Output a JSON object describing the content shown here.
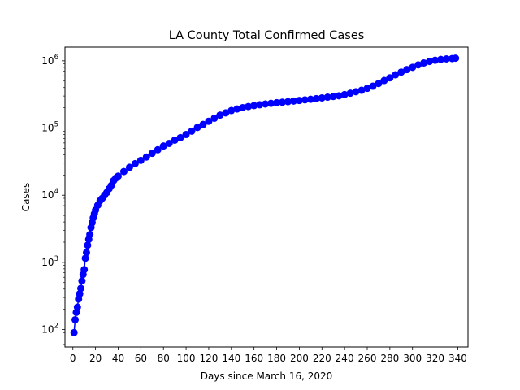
{
  "chart_data": {
    "type": "line",
    "title": "LA County Total Confirmed Cases",
    "xlabel": "Days since March 16, 2020",
    "ylabel": "Cases",
    "x_scale": "linear",
    "y_scale": "log",
    "xlim": [
      -7,
      349
    ],
    "ylim": [
      55,
      1600000
    ],
    "x_ticks": [
      0,
      20,
      40,
      60,
      80,
      100,
      120,
      140,
      160,
      180,
      200,
      220,
      240,
      260,
      280,
      300,
      320,
      340
    ],
    "y_ticks": [
      {
        "value": 100,
        "base": "10",
        "exp": "2"
      },
      {
        "value": 1000,
        "base": "10",
        "exp": "3"
      },
      {
        "value": 10000,
        "base": "10",
        "exp": "4"
      },
      {
        "value": 100000,
        "base": "10",
        "exp": "5"
      },
      {
        "value": 1000000,
        "base": "10",
        "exp": "6"
      }
    ],
    "grid": false,
    "legend": "none",
    "series": [
      {
        "color": "#0000ff",
        "marker": "circle",
        "points": [
          [
            1,
            90
          ],
          [
            2,
            140
          ],
          [
            3,
            180
          ],
          [
            4,
            215
          ],
          [
            5,
            285
          ],
          [
            6,
            340
          ],
          [
            7,
            410
          ],
          [
            8,
            530
          ],
          [
            9,
            660
          ],
          [
            10,
            780
          ],
          [
            11,
            1150
          ],
          [
            12,
            1400
          ],
          [
            13,
            1800
          ],
          [
            14,
            2200
          ],
          [
            15,
            2600
          ],
          [
            16,
            3300
          ],
          [
            17,
            3900
          ],
          [
            18,
            4600
          ],
          [
            19,
            5300
          ],
          [
            20,
            6000
          ],
          [
            22,
            7100
          ],
          [
            24,
            8300
          ],
          [
            26,
            9000
          ],
          [
            28,
            10000
          ],
          [
            30,
            11000
          ],
          [
            32,
            12500
          ],
          [
            34,
            14000
          ],
          [
            36,
            16500
          ],
          [
            38,
            18000
          ],
          [
            40,
            19200
          ],
          [
            45,
            22500
          ],
          [
            50,
            26000
          ],
          [
            55,
            29500
          ],
          [
            60,
            33000
          ],
          [
            65,
            37000
          ],
          [
            70,
            42000
          ],
          [
            75,
            47500
          ],
          [
            80,
            54000
          ],
          [
            85,
            59000
          ],
          [
            90,
            66000
          ],
          [
            95,
            72000
          ],
          [
            100,
            80000
          ],
          [
            105,
            90000
          ],
          [
            110,
            102000
          ],
          [
            115,
            113000
          ],
          [
            120,
            126000
          ],
          [
            125,
            140000
          ],
          [
            130,
            156000
          ],
          [
            135,
            168000
          ],
          [
            140,
            182000
          ],
          [
            145,
            192000
          ],
          [
            150,
            201000
          ],
          [
            155,
            209000
          ],
          [
            160,
            216000
          ],
          [
            165,
            222000
          ],
          [
            170,
            228000
          ],
          [
            175,
            233000
          ],
          [
            180,
            238000
          ],
          [
            185,
            242000
          ],
          [
            190,
            247000
          ],
          [
            195,
            252000
          ],
          [
            200,
            257000
          ],
          [
            205,
            263000
          ],
          [
            210,
            268000
          ],
          [
            215,
            274000
          ],
          [
            220,
            281000
          ],
          [
            225,
            288000
          ],
          [
            230,
            295000
          ],
          [
            235,
            302000
          ],
          [
            240,
            315000
          ],
          [
            245,
            330000
          ],
          [
            250,
            347000
          ],
          [
            255,
            365000
          ],
          [
            260,
            390000
          ],
          [
            265,
            420000
          ],
          [
            270,
            460000
          ],
          [
            275,
            510000
          ],
          [
            280,
            560000
          ],
          [
            285,
            620000
          ],
          [
            290,
            680000
          ],
          [
            295,
            740000
          ],
          [
            300,
            800000
          ],
          [
            305,
            870000
          ],
          [
            310,
            930000
          ],
          [
            315,
            980000
          ],
          [
            320,
            1020000
          ],
          [
            325,
            1050000
          ],
          [
            330,
            1070000
          ],
          [
            335,
            1080000
          ],
          [
            338,
            1095000
          ]
        ]
      }
    ]
  }
}
